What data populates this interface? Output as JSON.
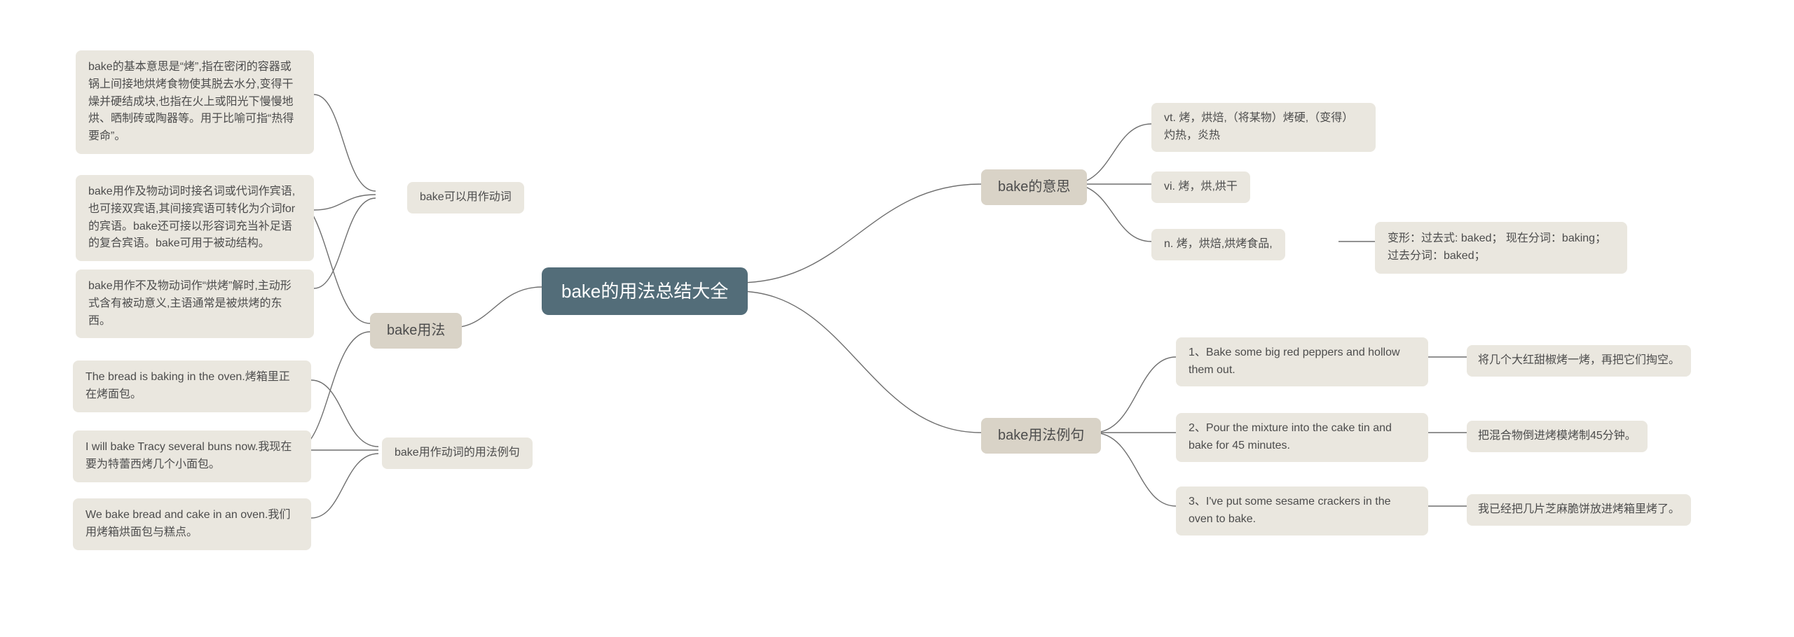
{
  "colors": {
    "root_bg": "#536d79",
    "root_text": "#ffffff",
    "lvl1_bg": "#d9d3c7",
    "lvl2_bg": "#eae7df",
    "leaf_bg": "#eae7df",
    "node_text": "#4c4c4c",
    "connector": "#6f6f6f",
    "canvas_bg": "#ffffff"
  },
  "typography": {
    "root_fontsize": 26,
    "lvl1_fontsize": 20,
    "lvl2_fontsize": 16,
    "leaf_fontsize": 16
  },
  "root": {
    "label": "bake的用法总结大全"
  },
  "right": {
    "meaning": {
      "label": "bake的意思",
      "items": {
        "vt": "vt. 烤，烘焙,（将某物）烤硬,（变得）灼热，炎热",
        "vi": "vi. 烤，烘,烘干",
        "n": "n. 烤，烘焙,烘烤食品,",
        "n_tail": "变形：过去式: baked；  现在分词：baking；  过去分词：baked；"
      }
    },
    "examples": {
      "label": "bake用法例句",
      "items": {
        "e1": "1、Bake some big red peppers and hollow them out.",
        "e1_zh": "将几个大红甜椒烤一烤，再把它们掏空。",
        "e2": "2、Pour the mixture into the cake tin and bake for 45 minutes.",
        "e2_zh": "把混合物倒进烤模烤制45分钟。",
        "e3": "3、I've put some sesame crackers in the oven to bake.",
        "e3_zh": "我已经把几片芝麻脆饼放进烤箱里烤了。"
      }
    }
  },
  "left": {
    "usage": {
      "label": "bake用法",
      "verb": {
        "label": "bake可以用作动词",
        "items": {
          "v1": "bake的基本意思是“烤”,指在密闭的容器或锅上间接地烘烤食物使其脱去水分,变得干燥并硬结成块,也指在火上或阳光下慢慢地烘、晒制砖或陶器等。用于比喻可指“热得要命”。",
          "v2": "bake用作及物动词时接名词或代词作宾语,也可接双宾语,其间接宾语可转化为介词for的宾语。bake还可接以形容词充当补足语的复合宾语。bake可用于被动结构。",
          "v3": "bake用作不及物动词作“烘烤”解时,主动形式含有被动意义,主语通常是被烘烤的东西。"
        }
      },
      "sentences": {
        "label": "bake用作动词的用法例句",
        "items": {
          "s1": "The bread is baking in the oven.烤箱里正在烤面包。",
          "s2": "I will bake Tracy several buns now.我现在要为特蕾西烤几个小面包。",
          "s3": "We bake bread and cake in an oven.我们用烤箱烘面包与糕点。"
        }
      }
    }
  }
}
